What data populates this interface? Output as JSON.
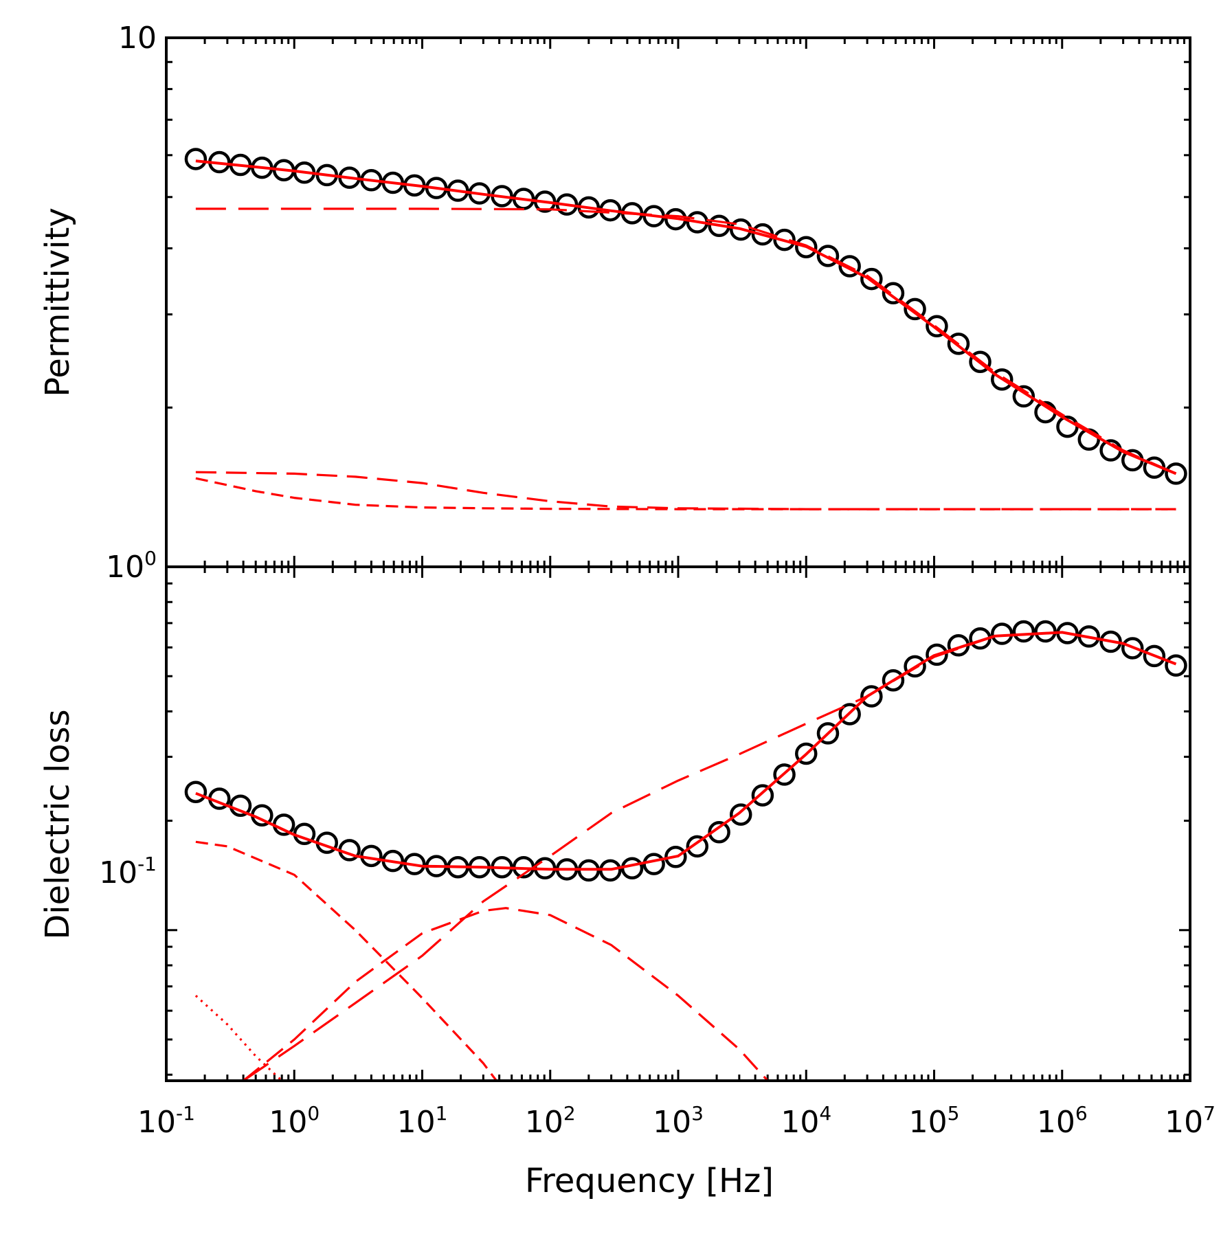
{
  "chart_data": [
    {
      "type": "line",
      "panel": "top",
      "ylabel": "Permittivity",
      "xscale": "log",
      "yscale": "log",
      "xlim": [
        0.1,
        10000000
      ],
      "ylim": [
        1,
        10
      ],
      "y_tick_labels": [
        {
          "base": "10",
          "exp": ""
        },
        {
          "base": "10",
          "exp": "0"
        }
      ],
      "grid": false,
      "legend": "none",
      "series": [
        {
          "style": "markers",
          "marker": "open-circle",
          "color": "#000000",
          "x": [
            0.17,
            0.26,
            0.38,
            0.56,
            0.83,
            1.2,
            1.8,
            2.7,
            4.0,
            5.9,
            8.7,
            12.9,
            19,
            28,
            42,
            62,
            91,
            135,
            200,
            295,
            437,
            646,
            956,
            1410,
            2090,
            3090,
            4570,
            6760,
            10000,
            14800,
            21900,
            32400,
            47900,
            70800,
            105000,
            155000,
            229000,
            339000,
            501000,
            741000,
            1100000,
            1620000,
            2400000,
            3550000,
            5250000,
            7760000
          ],
          "y": [
            5.9,
            5.82,
            5.75,
            5.68,
            5.62,
            5.56,
            5.5,
            5.44,
            5.38,
            5.32,
            5.26,
            5.2,
            5.14,
            5.08,
            5.02,
            4.96,
            4.9,
            4.84,
            4.78,
            4.72,
            4.66,
            4.6,
            4.54,
            4.48,
            4.41,
            4.34,
            4.25,
            4.15,
            4.02,
            3.87,
            3.7,
            3.5,
            3.29,
            3.07,
            2.85,
            2.64,
            2.44,
            2.26,
            2.1,
            1.96,
            1.84,
            1.74,
            1.66,
            1.59,
            1.54,
            1.5
          ]
        },
        {
          "style": "solid",
          "color": "#ff0000",
          "x": [
            0.17,
            0.5,
            1,
            3,
            10,
            30,
            100,
            300,
            1000,
            3000,
            10000,
            30000,
            100000,
            300000,
            1000000,
            3000000,
            7760000
          ],
          "y": [
            5.85,
            5.7,
            5.6,
            5.42,
            5.24,
            5.06,
            4.88,
            4.71,
            4.55,
            4.36,
            4.03,
            3.52,
            2.84,
            2.31,
            1.92,
            1.65,
            1.5
          ]
        },
        {
          "style": "long-dash",
          "color": "#ff0000",
          "x": [
            0.17,
            1,
            10,
            100,
            1000,
            3000,
            10000,
            30000,
            100000,
            300000,
            1000000,
            3000000,
            7760000
          ],
          "y": [
            4.75,
            4.75,
            4.75,
            4.74,
            4.6,
            4.44,
            4.05,
            3.55,
            2.86,
            2.33,
            1.94,
            1.66,
            1.5
          ]
        },
        {
          "style": "medium-dash",
          "color": "#ff0000",
          "x": [
            0.17,
            1,
            3,
            10,
            30,
            100,
            300,
            1000,
            10000,
            100000,
            7760000
          ],
          "y": [
            1.51,
            1.5,
            1.48,
            1.44,
            1.38,
            1.33,
            1.3,
            1.29,
            1.285,
            1.285,
            1.285
          ]
        },
        {
          "style": "short-dash",
          "color": "#ff0000",
          "x": [
            0.17,
            0.5,
            1,
            3,
            10,
            30,
            100,
            1000,
            10000,
            7760000
          ],
          "y": [
            1.47,
            1.39,
            1.35,
            1.31,
            1.295,
            1.29,
            1.287,
            1.285,
            1.285,
            1.285
          ]
        }
      ]
    },
    {
      "type": "line",
      "panel": "bottom",
      "xlabel": "Frequency [Hz]",
      "ylabel": "Dielectric loss",
      "xscale": "log",
      "yscale": "log",
      "xlim": [
        0.1,
        10000000
      ],
      "ylim": [
        0.0385,
        1
      ],
      "x_tick_labels": [
        {
          "base": "10",
          "exp": "-1"
        },
        {
          "base": "10",
          "exp": "0"
        },
        {
          "base": "10",
          "exp": "1"
        },
        {
          "base": "10",
          "exp": "2"
        },
        {
          "base": "10",
          "exp": "3"
        },
        {
          "base": "10",
          "exp": "4"
        },
        {
          "base": "10",
          "exp": "5"
        },
        {
          "base": "10",
          "exp": "6"
        },
        {
          "base": "10",
          "exp": "7"
        }
      ],
      "y_tick_labels": [
        {
          "base": "10",
          "exp": "-1"
        }
      ],
      "grid": false,
      "legend": "none",
      "series": [
        {
          "style": "markers",
          "marker": "open-circle",
          "color": "#000000",
          "x": [
            0.17,
            0.26,
            0.38,
            0.56,
            0.83,
            1.2,
            1.8,
            2.7,
            4.0,
            5.9,
            8.7,
            12.9,
            19,
            28,
            42,
            62,
            91,
            135,
            200,
            295,
            437,
            646,
            956,
            1410,
            2090,
            3090,
            4570,
            6760,
            10000,
            14800,
            21900,
            32400,
            47900,
            70800,
            105000,
            155000,
            229000,
            339000,
            501000,
            741000,
            1100000,
            1620000,
            2400000,
            3550000,
            5250000,
            7760000
          ],
          "y": [
            0.24,
            0.23,
            0.22,
            0.207,
            0.195,
            0.184,
            0.174,
            0.166,
            0.16,
            0.155,
            0.152,
            0.15,
            0.149,
            0.149,
            0.149,
            0.149,
            0.148,
            0.147,
            0.146,
            0.146,
            0.148,
            0.152,
            0.159,
            0.17,
            0.186,
            0.208,
            0.235,
            0.268,
            0.306,
            0.348,
            0.393,
            0.44,
            0.487,
            0.532,
            0.573,
            0.608,
            0.635,
            0.654,
            0.664,
            0.664,
            0.657,
            0.643,
            0.622,
            0.597,
            0.568,
            0.535
          ]
        },
        {
          "style": "solid",
          "color": "#ff0000",
          "x": [
            0.17,
            0.5,
            1,
            3,
            10,
            30,
            100,
            300,
            1000,
            3000,
            10000,
            30000,
            100000,
            300000,
            1000000,
            3000000,
            7760000
          ],
          "y": [
            0.238,
            0.205,
            0.183,
            0.16,
            0.15,
            0.149,
            0.147,
            0.147,
            0.16,
            0.21,
            0.305,
            0.44,
            0.57,
            0.645,
            0.66,
            0.615,
            0.54
          ]
        },
        {
          "style": "long-dash",
          "color": "#ff0000",
          "x": [
            0.4,
            1,
            3,
            10,
            30,
            100,
            300,
            1000,
            3000,
            10000,
            30000,
            100000,
            300000,
            1000000,
            3000000,
            7760000
          ],
          "y": [
            0.0385,
            0.048,
            0.063,
            0.085,
            0.12,
            0.16,
            0.21,
            0.258,
            0.305,
            0.37,
            0.44,
            0.565,
            0.645,
            0.66,
            0.615,
            0.54
          ]
        },
        {
          "style": "medium-dash",
          "color": "#ff0000",
          "x": [
            0.4,
            1,
            3,
            10,
            30,
            45,
            100,
            300,
            1000,
            3000,
            5000
          ],
          "y": [
            0.0385,
            0.05,
            0.072,
            0.098,
            0.113,
            0.115,
            0.11,
            0.091,
            0.066,
            0.047,
            0.0385
          ]
        },
        {
          "style": "short-dash",
          "color": "#ff0000",
          "x": [
            0.17,
            0.3,
            1,
            3,
            10,
            30,
            38
          ],
          "y": [
            0.175,
            0.17,
            0.142,
            0.1,
            0.065,
            0.043,
            0.0385
          ]
        },
        {
          "style": "dotted",
          "color": "#ff0000",
          "x": [
            0.17,
            0.3,
            0.5,
            0.8
          ],
          "y": [
            0.066,
            0.055,
            0.045,
            0.0385
          ]
        }
      ]
    }
  ]
}
